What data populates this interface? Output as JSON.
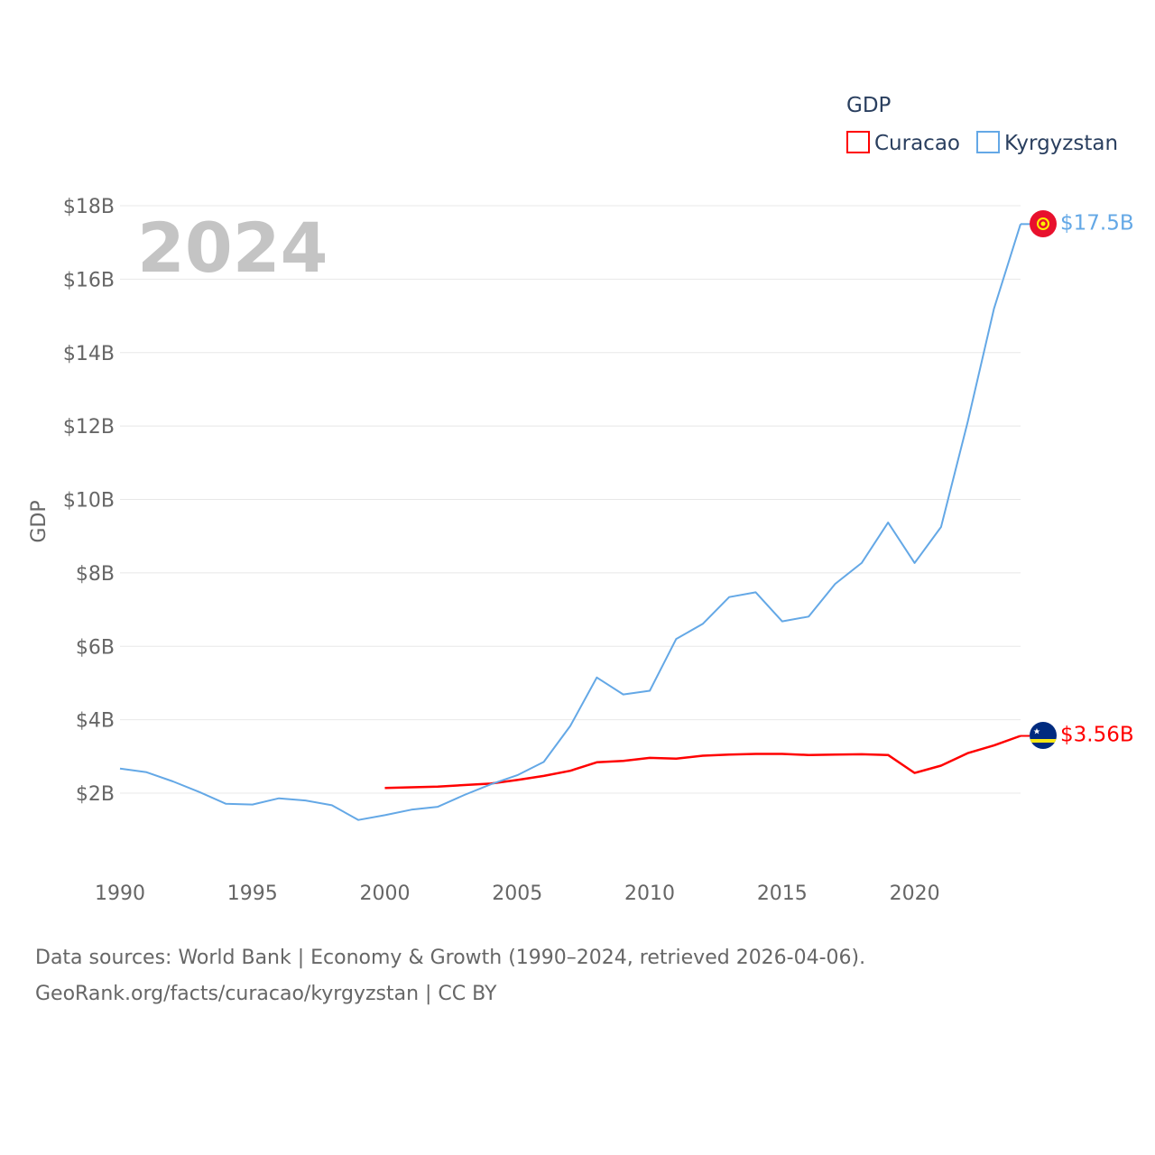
{
  "chart_data": {
    "type": "line",
    "title": "",
    "watermark": "2024",
    "legend_title": "GDP",
    "legend_position": "top-right",
    "ylabel": "GDP",
    "xlabel": "",
    "xlim": [
      1990,
      2024
    ],
    "ylim": [
      0,
      18
    ],
    "x_ticks": [
      1990,
      1995,
      2000,
      2005,
      2010,
      2015,
      2020
    ],
    "x_tick_labels": [
      "1990",
      "1995",
      "2000",
      "2005",
      "2010",
      "2015",
      "2020"
    ],
    "y_ticks": [
      2,
      4,
      6,
      8,
      10,
      12,
      14,
      16,
      18
    ],
    "y_tick_labels": [
      "$2B",
      "$4B",
      "$6B",
      "$8B",
      "$10B",
      "$12B",
      "$14B",
      "$16B",
      "$18B"
    ],
    "grid": true,
    "series": [
      {
        "name": "Curacao",
        "color": "#ff0000",
        "flag": "curacao-flag",
        "end_label": "$3.56B",
        "x": [
          2000,
          2001,
          2002,
          2003,
          2004,
          2005,
          2006,
          2007,
          2008,
          2009,
          2010,
          2011,
          2012,
          2013,
          2014,
          2015,
          2016,
          2017,
          2018,
          2019,
          2020,
          2021,
          2022,
          2023,
          2024
        ],
        "values": [
          2.14,
          2.16,
          2.18,
          2.22,
          2.26,
          2.36,
          2.47,
          2.61,
          2.84,
          2.88,
          2.96,
          2.94,
          3.02,
          3.05,
          3.07,
          3.07,
          3.04,
          3.05,
          3.06,
          3.04,
          2.55,
          2.75,
          3.09,
          3.3,
          3.56
        ]
      },
      {
        "name": "Kyrgyzstan",
        "color": "#64a8e6",
        "flag": "kyrgyzstan-flag",
        "end_label": "$17.5B",
        "x": [
          1990,
          1991,
          1992,
          1993,
          1994,
          1995,
          1996,
          1997,
          1998,
          1999,
          2000,
          2001,
          2002,
          2003,
          2004,
          2005,
          2006,
          2007,
          2008,
          2009,
          2010,
          2011,
          2012,
          2013,
          2014,
          2015,
          2016,
          2017,
          2018,
          2019,
          2020,
          2021,
          2022,
          2023,
          2024
        ],
        "values": [
          2.67,
          2.57,
          2.32,
          2.03,
          1.71,
          1.69,
          1.86,
          1.8,
          1.67,
          1.27,
          1.4,
          1.55,
          1.63,
          1.95,
          2.24,
          2.49,
          2.85,
          3.83,
          5.15,
          4.69,
          4.79,
          6.2,
          6.61,
          7.34,
          7.47,
          6.68,
          6.81,
          7.7,
          8.27,
          9.37,
          8.27,
          9.25,
          12.1,
          15.2,
          17.5
        ]
      }
    ]
  },
  "footer": {
    "line1": "Data sources: World Bank | Economy & Growth (1990–2024, retrieved 2026-04-06).",
    "line2": "GeoRank.org/facts/curacao/kyrgyzstan | CC BY"
  }
}
